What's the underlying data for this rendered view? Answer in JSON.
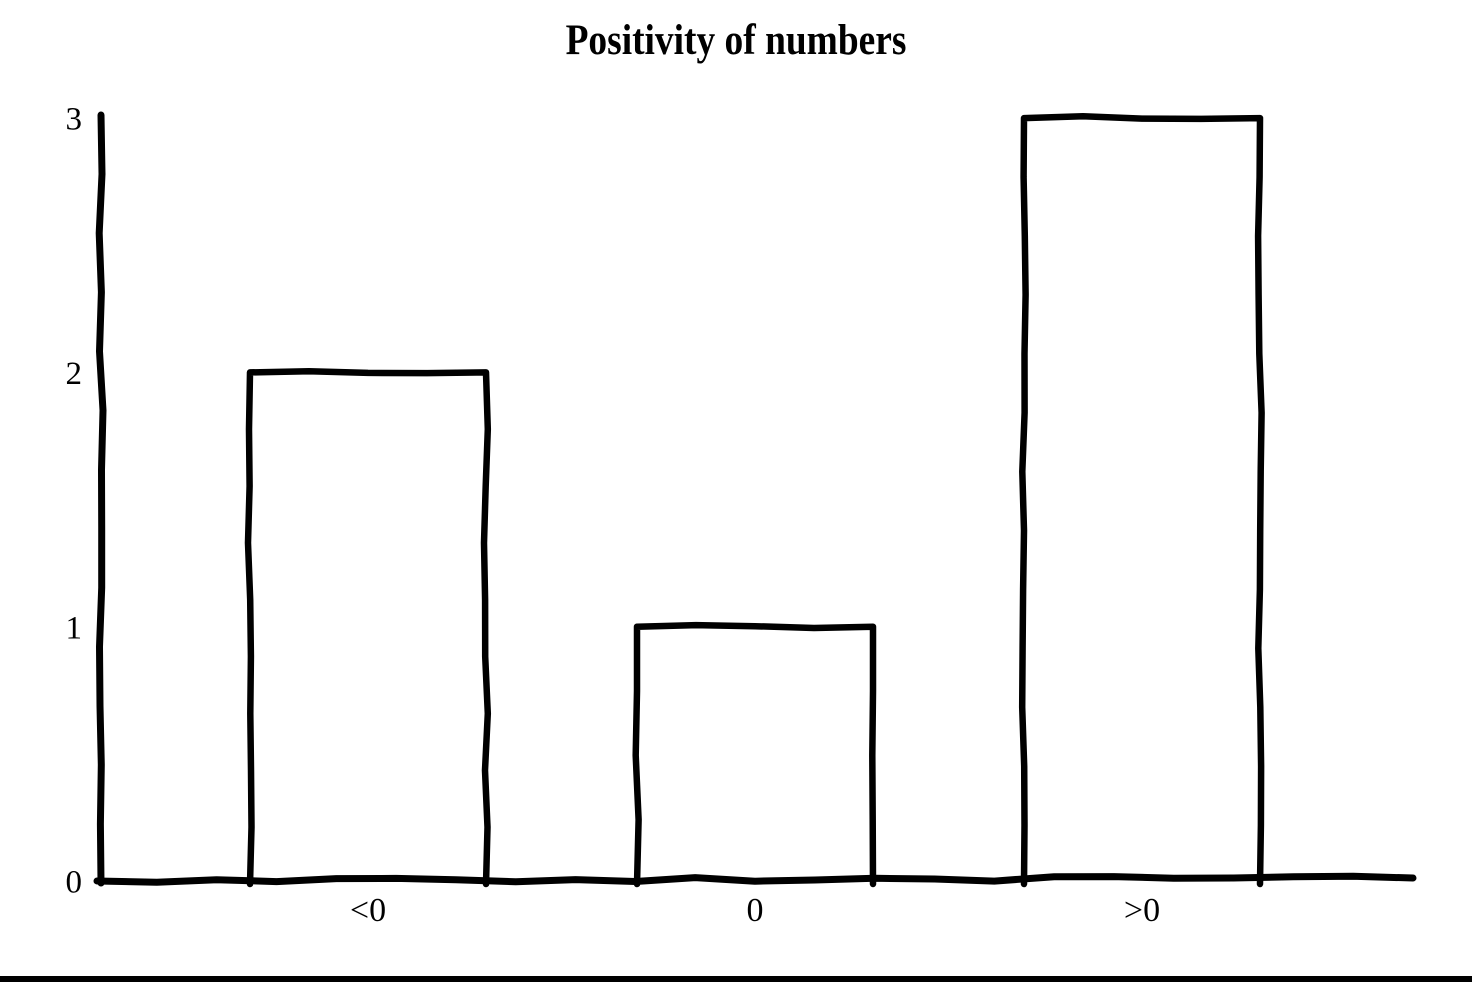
{
  "chart_data": {
    "type": "bar",
    "title": "Positivity of numbers",
    "categories": [
      "<0",
      "0",
      ">0"
    ],
    "values": [
      2,
      1,
      3
    ],
    "yticks": [
      0,
      1,
      2,
      3
    ],
    "ylim": [
      0,
      3
    ],
    "xlabel": "",
    "ylabel": "",
    "grid": false,
    "legend": false,
    "style": "hand-drawn-sketch",
    "colors": {
      "stroke": "#000000",
      "bar_fill": "#ffffff",
      "background": "#ffffff",
      "bottom_rule": "#000000"
    }
  }
}
